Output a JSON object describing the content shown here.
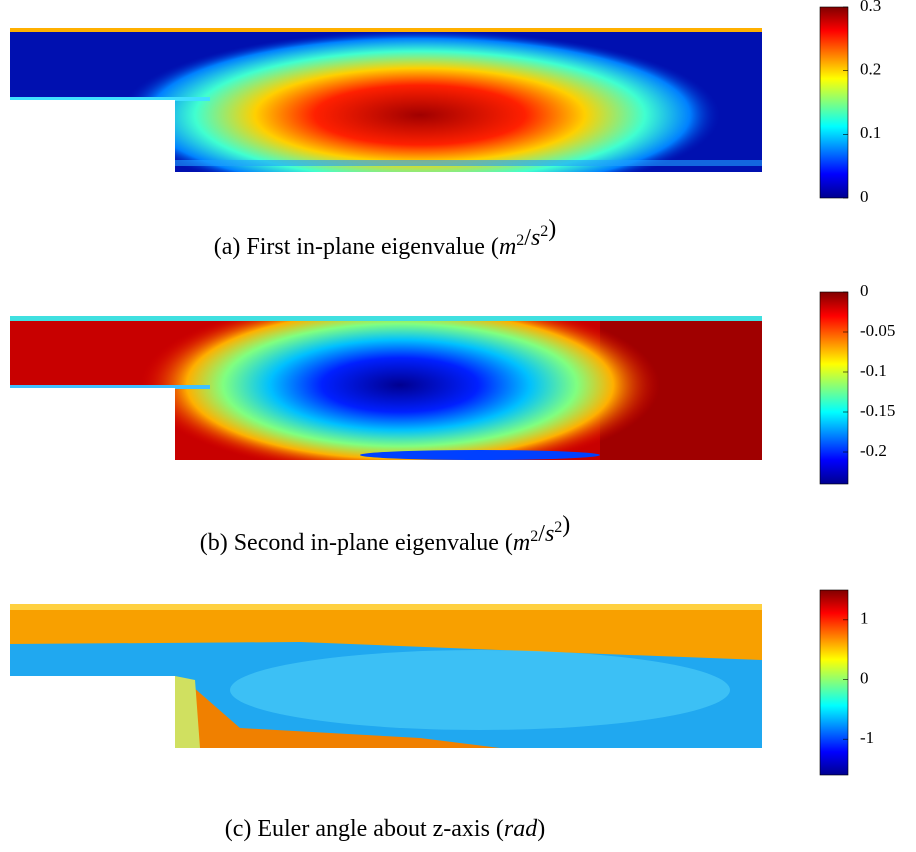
{
  "panels": [
    {
      "caption": {
        "prefix": "(a) First in-plane eigenvalue (",
        "math": [
          {
            "text": "m",
            "sup": "2"
          },
          {
            "text": "/"
          },
          {
            "text": "s",
            "sup": "2"
          }
        ],
        "suffix": ")"
      },
      "colorbar": {
        "lim": [
          0,
          0.3
        ],
        "ticks": [
          0,
          0.1,
          0.2,
          0.3
        ]
      }
    },
    {
      "caption": {
        "prefix": "(b) Second in-plane eigenvalue (",
        "math": [
          {
            "text": "m",
            "sup": "2"
          },
          {
            "text": "/"
          },
          {
            "text": "s",
            "sup": "2"
          }
        ],
        "suffix": ")"
      },
      "colorbar": {
        "lim": [
          -0.24,
          0
        ],
        "ticks": [
          -0.2,
          -0.15,
          -0.1,
          -0.05,
          0
        ]
      }
    },
    {
      "caption": {
        "prefix": "(c) Euler angle about z-axis (",
        "math": [
          {
            "text": "rad"
          }
        ],
        "suffix": ")"
      },
      "colorbar": {
        "lim": [
          -1.6,
          1.5
        ],
        "ticks": [
          -1,
          0,
          1
        ]
      }
    }
  ]
}
